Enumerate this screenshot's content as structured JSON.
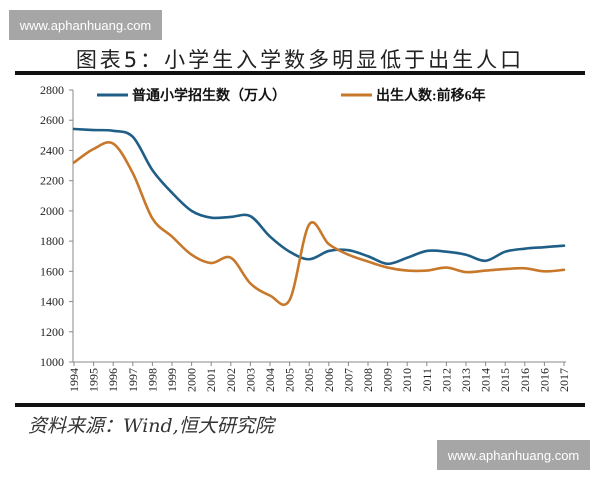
{
  "watermark": {
    "top": "www.aphanhuang.com",
    "bottom": "www.aphanhuang.com"
  },
  "title": "图表5：小学生入学数多明显低于出生人口",
  "source": "资料来源：Wind,恒大研究院",
  "colors": {
    "enrollment": "#1f5e86",
    "births": "#c8782a",
    "axis": "#888888"
  },
  "chart_data": {
    "type": "line",
    "title": "图表5：小学生入学数多明显低于出生人口",
    "xlabel": "",
    "ylabel": "",
    "ylim": [
      1000,
      2800
    ],
    "yticks": [
      1000,
      1200,
      1400,
      1600,
      1800,
      2000,
      2200,
      2400,
      2600,
      2800
    ],
    "grid": false,
    "legend_position": "top",
    "categories": [
      "1994",
      "1995",
      "1996",
      "1997",
      "1998",
      "1999",
      "2000",
      "2001",
      "2002",
      "2003",
      "2004",
      "2005",
      "2005",
      "2006",
      "2007",
      "2008",
      "2009",
      "2010",
      "2011",
      "2012",
      "2013",
      "2014",
      "2015",
      "2016",
      "2016",
      "2017"
    ],
    "series": [
      {
        "name": "普通小学招生数（万人）",
        "color": "#1f5e86",
        "values": [
          2542,
          2535,
          2530,
          2490,
          2270,
          2120,
          2000,
          1955,
          1960,
          1965,
          1830,
          1730,
          1680,
          1735,
          1740,
          1700,
          1650,
          1690,
          1735,
          1730,
          1710,
          1670,
          1730,
          1750,
          1760,
          1770
        ]
      },
      {
        "name": "出生人数:前移6年",
        "color": "#c8782a",
        "values": [
          2320,
          2410,
          2445,
          2250,
          1950,
          1830,
          1710,
          1655,
          1690,
          1520,
          1440,
          1410,
          1910,
          1780,
          1710,
          1665,
          1625,
          1605,
          1605,
          1625,
          1595,
          1605,
          1615,
          1620,
          1600,
          1610
        ]
      }
    ]
  }
}
